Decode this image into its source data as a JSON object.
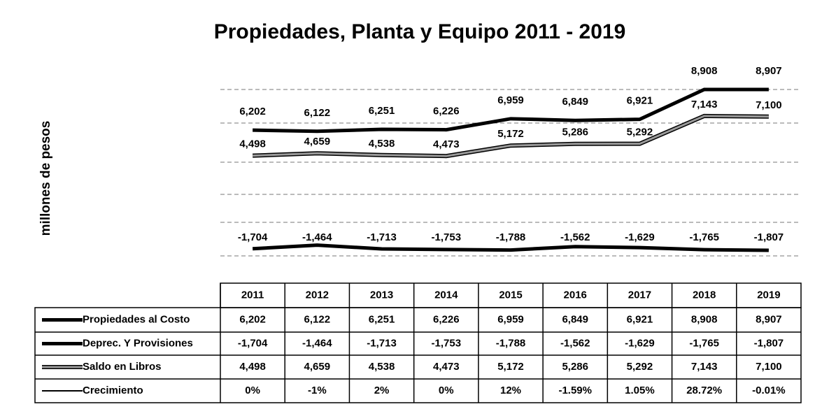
{
  "chart_data": {
    "type": "line",
    "title": "Propiedades, Planta y Equipo 2011 - 2019",
    "y_label": "millones de pesos",
    "categories": [
      "2011",
      "2012",
      "2013",
      "2014",
      "2015",
      "2016",
      "2017",
      "2018",
      "2019"
    ],
    "series": [
      {
        "name": "Propiedades al Costo",
        "color": "#000000",
        "values": [
          6202,
          6122,
          6251,
          6226,
          6959,
          6849,
          6921,
          8908,
          8907
        ],
        "value_labels": [
          "6,202",
          "6,122",
          "6,251",
          "6,226",
          "6,959",
          "6,849",
          "6,921",
          "8,908",
          "8,907"
        ]
      },
      {
        "name": "Deprec. Y Provisiones",
        "color": "#000000",
        "values": [
          -1704,
          -1464,
          -1713,
          -1753,
          -1788,
          -1562,
          -1629,
          -1765,
          -1807
        ],
        "value_labels": [
          "-1,704",
          "-1,464",
          "-1,713",
          "-1,753",
          "-1,788",
          "-1,562",
          "-1,629",
          "-1,765",
          "-1,807"
        ]
      },
      {
        "name": "Saldo en Libros",
        "color": "#9a9a9a",
        "values": [
          4498,
          4659,
          4538,
          4473,
          5172,
          5286,
          5292,
          7143,
          7100
        ],
        "value_labels": [
          "4,498",
          "4,659",
          "4,538",
          "4,473",
          "5,172",
          "5,286",
          "5,292",
          "7,143",
          "7,100"
        ]
      },
      {
        "name": "Crecimiento",
        "color": "#000000",
        "values": [
          0,
          -1,
          2,
          0,
          12,
          -1.59,
          1.05,
          28.72,
          -0.01
        ],
        "value_labels": [
          "0%",
          "-1%",
          "2%",
          "0%",
          "12%",
          "-1.59%",
          "1.05%",
          "28.72%",
          "-0.01%"
        ]
      }
    ]
  }
}
